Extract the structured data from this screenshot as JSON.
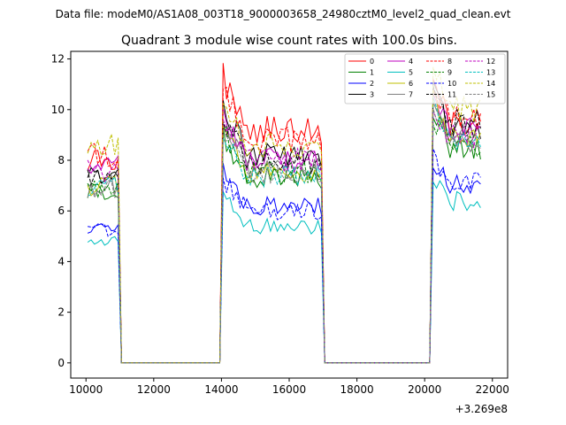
{
  "suptitle": "Data file: modeM0/AS1A08_003T18_9000003658_24980cztM0_level2_quad_clean.evt",
  "chart_data": {
    "type": "line",
    "title": "Quadrant 3 module wise count rates with 100.0s bins.",
    "xlabel": "",
    "ylabel": "",
    "x_offset_label": "+3.269e8",
    "xlim": [
      9550,
      22450
    ],
    "ylim": [
      -0.6,
      12.3
    ],
    "xticks": [
      10000,
      12000,
      14000,
      16000,
      18000,
      20000,
      22000
    ],
    "yticks": [
      0,
      2,
      4,
      6,
      8,
      10,
      12
    ],
    "legend_position": "top-right",
    "legend_columns": 4,
    "segments": [
      {
        "t0": 10050,
        "t1": 10950
      },
      {
        "t0": 14050,
        "t1": 16950
      },
      {
        "t0": 20250,
        "t1": 21650
      }
    ],
    "series": [
      {
        "name": "0",
        "color": "#ff0000",
        "dash": false,
        "levels": [
          8.0,
          9.2,
          9.5
        ]
      },
      {
        "name": "1",
        "color": "#008000",
        "dash": false,
        "levels": [
          6.8,
          7.3,
          8.5
        ]
      },
      {
        "name": "2",
        "color": "#0000ff",
        "dash": false,
        "levels": [
          5.3,
          6.2,
          7.0
        ]
      },
      {
        "name": "3",
        "color": "#000000",
        "dash": false,
        "levels": [
          7.5,
          8.2,
          9.3
        ]
      },
      {
        "name": "4",
        "color": "#bf00bf",
        "dash": false,
        "levels": [
          7.8,
          8.0,
          9.2
        ]
      },
      {
        "name": "5",
        "color": "#00bfbf",
        "dash": false,
        "levels": [
          4.8,
          5.4,
          6.4
        ]
      },
      {
        "name": "6",
        "color": "#bfbf00",
        "dash": false,
        "levels": [
          7.0,
          7.5,
          8.9
        ]
      },
      {
        "name": "7",
        "color": "#808080",
        "dash": false,
        "levels": [
          7.0,
          7.6,
          8.8
        ]
      },
      {
        "name": "8",
        "color": "#ff0000",
        "dash": true,
        "levels": [
          8.2,
          8.8,
          9.6
        ]
      },
      {
        "name": "9",
        "color": "#008000",
        "dash": true,
        "levels": [
          6.9,
          7.5,
          8.6
        ]
      },
      {
        "name": "10",
        "color": "#0000ff",
        "dash": true,
        "levels": [
          5.2,
          6.0,
          7.1
        ]
      },
      {
        "name": "11",
        "color": "#000000",
        "dash": true,
        "levels": [
          7.3,
          7.9,
          9.5
        ]
      },
      {
        "name": "12",
        "color": "#bf00bf",
        "dash": true,
        "levels": [
          7.6,
          8.0,
          9.0
        ]
      },
      {
        "name": "13",
        "color": "#00bfbf",
        "dash": true,
        "levels": [
          7.0,
          7.4,
          8.7
        ]
      },
      {
        "name": "14",
        "color": "#bfbf00",
        "dash": true,
        "levels": [
          8.7,
          8.6,
          10.0
        ]
      },
      {
        "name": "15",
        "color": "#808080",
        "dash": true,
        "levels": [
          6.8,
          7.4,
          8.9
        ]
      }
    ]
  }
}
